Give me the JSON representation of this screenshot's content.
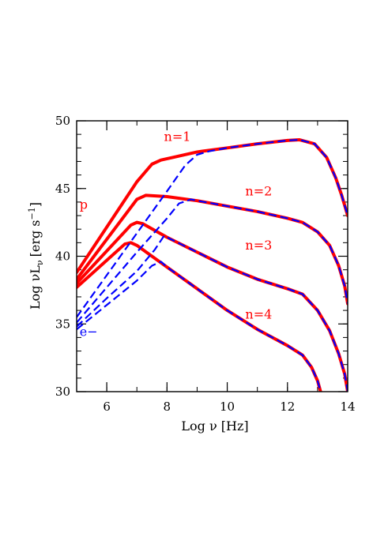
{
  "chart_data": {
    "type": "line",
    "xlabel": "Log ν [Hz]",
    "ylabel": "Log νL",
    "ylabel_subscript": "ν",
    "ylabel_unit": "[erg s",
    "ylabel_unit_sup": "−1",
    "ylabel_unit_end": "]",
    "xlim": [
      5,
      14
    ],
    "ylim": [
      30,
      50
    ],
    "xticks": [
      6,
      8,
      10,
      12,
      14
    ],
    "yticks": [
      30,
      35,
      40,
      45,
      50
    ],
    "xtick_labels": [
      "6",
      "8",
      "10",
      "12",
      "14"
    ],
    "ytick_labels": [
      "30",
      "35",
      "40",
      "45",
      "50"
    ],
    "grid": false,
    "colors": {
      "proton": "#ff0000",
      "electron": "#0000ff"
    },
    "series": [
      {
        "group": "proton",
        "n_label": "n=1",
        "x": [
          5.0,
          7.0,
          7.5,
          7.8,
          8.2,
          9.0,
          10.0,
          11.0,
          12.0,
          12.4,
          12.9,
          13.3,
          13.6,
          13.8,
          14.0
        ],
        "y": [
          38.8,
          45.5,
          46.8,
          47.1,
          47.3,
          47.7,
          48.0,
          48.3,
          48.55,
          48.6,
          48.3,
          47.3,
          45.8,
          44.5,
          43.0
        ]
      },
      {
        "group": "proton",
        "n_label": "n=2",
        "x": [
          5.0,
          7.0,
          7.3,
          8.0,
          9.0,
          10.0,
          11.0,
          12.0,
          12.5,
          13.0,
          13.4,
          13.7,
          13.9,
          14.0
        ],
        "y": [
          38.3,
          44.2,
          44.5,
          44.4,
          44.1,
          43.7,
          43.3,
          42.8,
          42.5,
          41.8,
          40.8,
          39.3,
          37.8,
          36.5
        ]
      },
      {
        "group": "proton",
        "n_label": "n=3",
        "x": [
          5.0,
          6.8,
          7.0,
          7.2,
          8.0,
          9.0,
          10.0,
          11.0,
          12.0,
          12.5,
          13.0,
          13.4,
          13.7,
          13.9,
          14.0
        ],
        "y": [
          38.0,
          42.3,
          42.5,
          42.4,
          41.4,
          40.3,
          39.2,
          38.3,
          37.6,
          37.2,
          36.0,
          34.5,
          32.8,
          31.3,
          30.0
        ]
      },
      {
        "group": "proton",
        "n_label": "n=4",
        "x": [
          5.0,
          6.6,
          6.8,
          7.0,
          8.0,
          9.0,
          10.0,
          11.0,
          12.0,
          12.5,
          12.8,
          13.0,
          13.1
        ],
        "y": [
          37.7,
          40.9,
          41.0,
          40.8,
          39.2,
          37.6,
          36.0,
          34.6,
          33.4,
          32.7,
          31.8,
          30.8,
          30.0
        ]
      },
      {
        "group": "electron",
        "n_label": "n=1",
        "x": [
          5.0,
          6.0,
          7.0,
          8.0,
          8.6,
          9.0,
          9.4,
          10.0,
          11.0,
          12.0,
          12.4,
          12.9,
          13.3,
          13.6,
          13.8,
          14.0
        ],
        "y": [
          35.5,
          38.6,
          41.7,
          44.8,
          46.7,
          47.5,
          47.75,
          48.0,
          48.3,
          48.55,
          48.6,
          48.3,
          47.3,
          45.8,
          44.5,
          43.0
        ]
      },
      {
        "group": "electron",
        "n_label": "n=2",
        "x": [
          5.0,
          6.0,
          7.0,
          8.0,
          8.4,
          8.8,
          9.0,
          10.0,
          11.0,
          12.0,
          12.5,
          13.0,
          13.4,
          13.7,
          13.9,
          14.0
        ],
        "y": [
          35.1,
          37.7,
          40.3,
          42.8,
          43.9,
          44.2,
          44.1,
          43.7,
          43.3,
          42.8,
          42.5,
          41.8,
          40.8,
          39.3,
          37.8,
          36.5
        ]
      },
      {
        "group": "electron",
        "n_label": "n=3",
        "x": [
          5.0,
          6.0,
          7.0,
          7.6,
          7.9,
          8.0,
          9.0,
          10.0,
          11.0,
          12.0,
          12.5,
          13.0,
          13.4,
          13.7,
          13.9,
          14.0
        ],
        "y": [
          34.8,
          36.9,
          38.9,
          40.5,
          41.5,
          41.4,
          40.3,
          39.2,
          38.3,
          37.6,
          37.2,
          36.0,
          34.5,
          32.8,
          31.3,
          30.0
        ]
      },
      {
        "group": "electron",
        "n_label": "n=4",
        "x": [
          5.0,
          6.0,
          7.0,
          7.5,
          7.8,
          8.0,
          9.0,
          10.0,
          11.0,
          12.0,
          12.5,
          12.8,
          13.0,
          13.1
        ],
        "y": [
          34.6,
          36.4,
          38.2,
          39.3,
          39.6,
          39.2,
          37.6,
          36.0,
          34.6,
          33.4,
          32.7,
          31.8,
          30.8,
          30.0
        ]
      }
    ],
    "annotations": [
      {
        "text": "n=1",
        "x": 7.9,
        "y": 48.5,
        "color": "#ff0000"
      },
      {
        "text": "n=2",
        "x": 10.6,
        "y": 44.5,
        "color": "#ff0000"
      },
      {
        "text": "n=3",
        "x": 10.6,
        "y": 40.5,
        "color": "#ff0000"
      },
      {
        "text": "n=4",
        "x": 10.6,
        "y": 35.4,
        "color": "#ff0000"
      },
      {
        "text": "p",
        "x": 5.1,
        "y": 43.5,
        "color": "#ff0000"
      },
      {
        "text": "e−",
        "x": 5.1,
        "y": 34.1,
        "color": "#0000ff"
      }
    ]
  }
}
